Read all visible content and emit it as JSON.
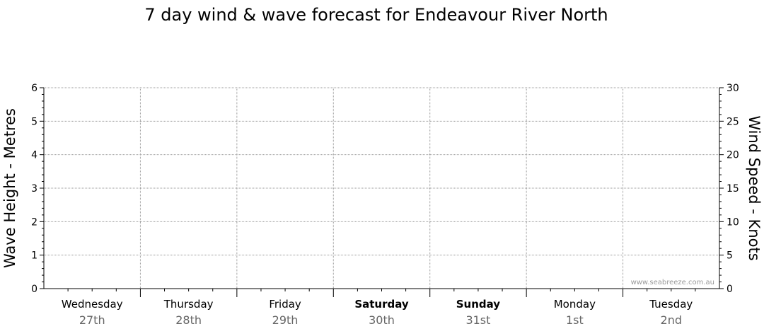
{
  "chart_data": {
    "type": "line",
    "title": "7 day wind & wave forecast for Endeavour River North",
    "ylabel_left": "Wave Height - Metres",
    "ylabel_right": "Wind Speed - Knots",
    "ylim_left": [
      0,
      6
    ],
    "ylim_right": [
      0,
      30
    ],
    "yticks_left": [
      "0",
      "1",
      "2",
      "3",
      "4",
      "5",
      "6"
    ],
    "yticks_right": [
      "0",
      "5",
      "10",
      "15",
      "20",
      "25",
      "30"
    ],
    "grid": true,
    "days": [
      {
        "name": "Wednesday",
        "date": "27th",
        "bold": false
      },
      {
        "name": "Thursday",
        "date": "28th",
        "bold": false
      },
      {
        "name": "Friday",
        "date": "29th",
        "bold": false
      },
      {
        "name": "Saturday",
        "date": "30th",
        "bold": true
      },
      {
        "name": "Sunday",
        "date": "31st",
        "bold": true
      },
      {
        "name": "Monday",
        "date": "1st",
        "bold": false
      },
      {
        "name": "Tuesday",
        "date": "2nd",
        "bold": false
      }
    ],
    "series": []
  },
  "watermark": "www.seabreeze.com.au"
}
